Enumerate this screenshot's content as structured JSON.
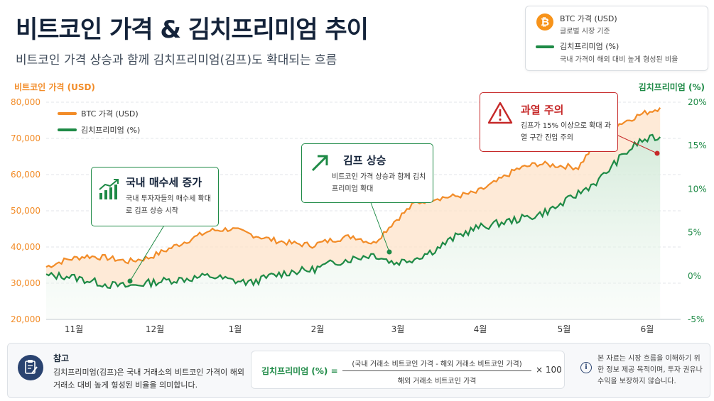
{
  "header": {
    "title": "비트코인 가격 & 김치프리미엄 추이",
    "subtitle": "비트코인 가격 상승과 함께 김치프리미엄(김프)도 확대되는 흐름"
  },
  "legend_box": {
    "btc_title": "BTC 가격 (USD)",
    "btc_sub": "글로벌 시장 기준",
    "kp_title": "김치프리미엄 (%)",
    "kp_sub": "국내 가격이 해외 대비 높게 형성된 비율",
    "btc_symbol": "₿"
  },
  "chart_data": {
    "type": "line",
    "left_axis_label": "비트코인 가격 (USD)",
    "right_axis_label": "김치프리미엄 (%)",
    "left_ticks": [
      "80,000",
      "70,000",
      "60,000",
      "50,000",
      "40,000",
      "30,000",
      "20,000"
    ],
    "right_ticks": [
      "20%",
      "15%",
      "10%",
      "5%",
      "0%",
      "-5%"
    ],
    "ylim_left": [
      20000,
      80000
    ],
    "ylim_right": [
      -5,
      20
    ],
    "x_ticks": [
      "11월",
      "12월",
      "1월",
      "2월",
      "3월",
      "4월",
      "5월",
      "6월"
    ],
    "inner_legend": [
      "BTC 가격 (USD)",
      "김치프리미엄 (%)"
    ],
    "colors": {
      "btc": "#f28c28",
      "kp": "#1e8a46",
      "btc_fill": "#fde4cc",
      "kp_fill": "#e3f1e6"
    },
    "series": [
      {
        "name": "BTC 가격 (USD)",
        "axis": "left",
        "x": [
          0,
          0.25,
          0.5,
          0.75,
          1,
          1.25,
          1.5,
          1.75,
          2,
          2.25,
          2.5,
          2.75,
          3,
          3.25,
          3.5,
          3.75,
          4,
          4.25,
          4.5,
          4.75,
          5,
          5.25,
          5.5,
          5.75,
          6,
          6.25,
          6.5,
          6.75,
          7,
          7.25,
          7.5
        ],
        "values": [
          34500,
          36500,
          37500,
          37000,
          36000,
          37000,
          39500,
          42000,
          44500,
          45000,
          43500,
          42000,
          41000,
          40500,
          42000,
          43000,
          41000,
          47000,
          52000,
          53500,
          54000,
          55000,
          58000,
          61500,
          63000,
          62500,
          62000,
          70000,
          74000,
          76500,
          78500
        ]
      },
      {
        "name": "김치프리미엄 (%)",
        "axis": "right",
        "x": [
          0,
          0.25,
          0.5,
          0.75,
          1,
          1.25,
          1.5,
          1.75,
          2,
          2.25,
          2.5,
          2.75,
          3,
          3.25,
          3.5,
          3.75,
          4,
          4.25,
          4.5,
          4.75,
          5,
          5.25,
          5.5,
          5.75,
          6,
          6.25,
          6.5,
          6.75,
          7,
          7.25,
          7.5
        ],
        "values": [
          0,
          0,
          -0.5,
          -1,
          -1.2,
          -0.8,
          -0.5,
          -0.3,
          0,
          -0.5,
          -0.8,
          0,
          0.5,
          0.7,
          1.5,
          2,
          2.5,
          1.5,
          2,
          3,
          4.5,
          5.5,
          6,
          6.5,
          7,
          8,
          9.5,
          11,
          13.5,
          15.5,
          16
        ]
      }
    ],
    "annotations": [
      {
        "title": "국내 매수세 증가",
        "text": "국내 투자자들의 매수세 확대로 김프 상승 시작"
      },
      {
        "title": "김프 상승",
        "text": "비트코인 가격 상승과 함께 김치프리미엄 확대"
      },
      {
        "title": "과열 주의",
        "text": "김프가 15% 이상으로 확대 과열 구간 진입 주의"
      }
    ]
  },
  "footer": {
    "note_title": "참고",
    "note_text": "김치프리미엄(김프)은 국내 거래소의 비트코인 가격이 해외 거래소 대비 높게 형성된 비율을 의미합니다.",
    "formula_label": "김치프리미엄 (%) =",
    "formula_numerator": "(국내 거래소 비트코인 가격 - 해외 거래소 비트코인 가격)",
    "formula_denominator": "해외 거래소 비트코인 가격",
    "formula_multiplier": "× 100",
    "disclaimer": "본 자료는 시장 흐름을 이해하기 위한 정보 제공 목적이며, 투자 권유나 수익을 보장하지 않습니다.",
    "info_symbol": "i"
  }
}
